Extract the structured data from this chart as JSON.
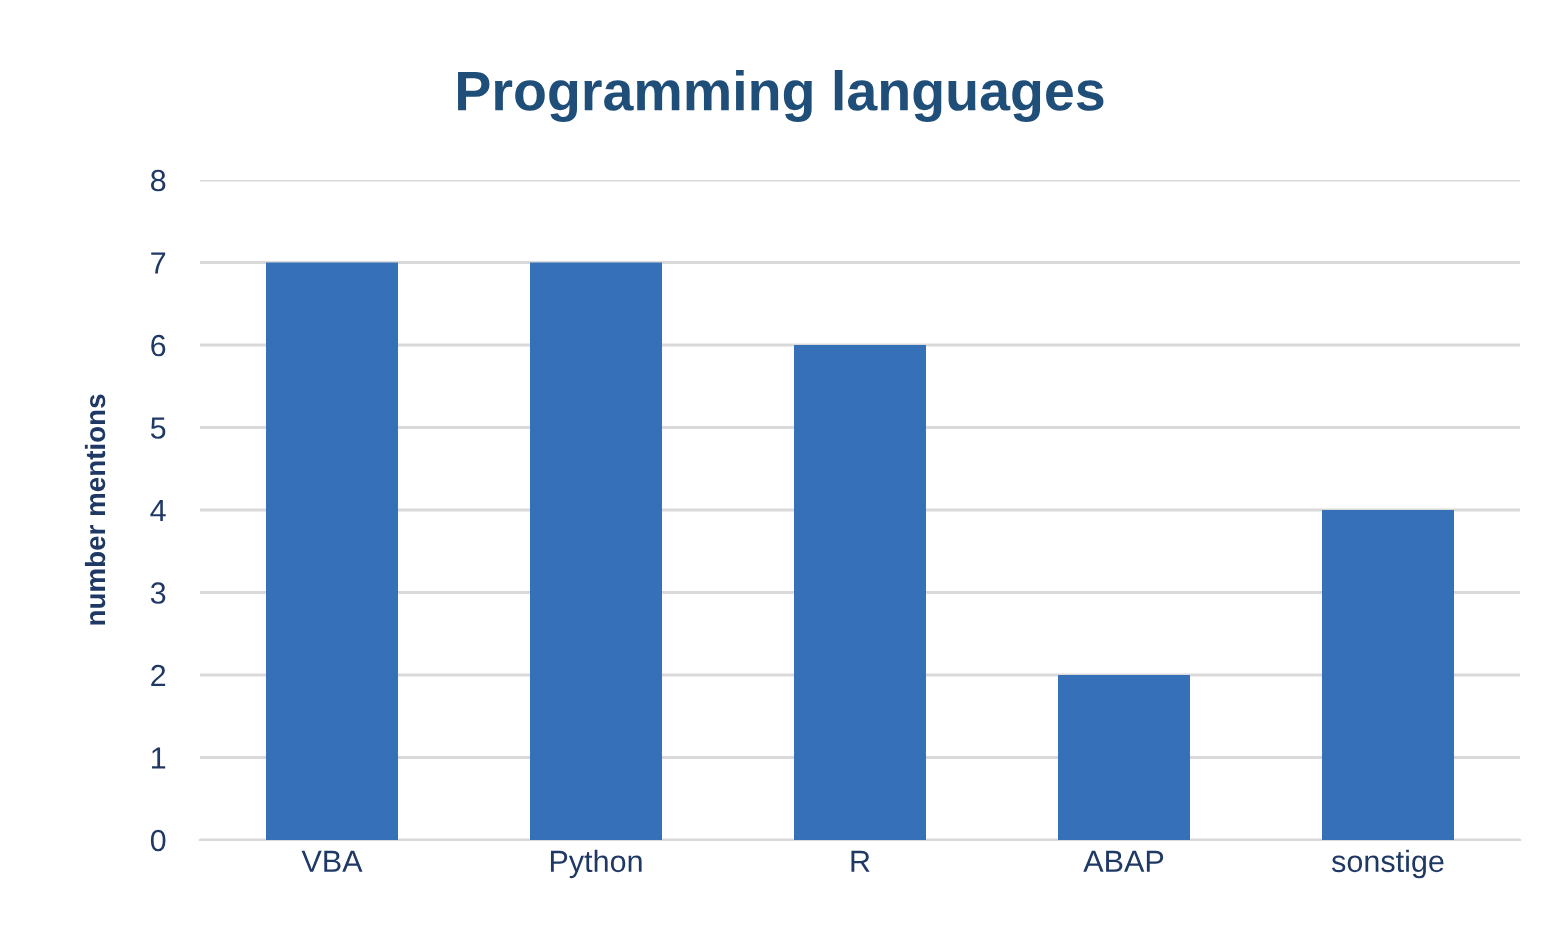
{
  "chart_data": {
    "type": "bar",
    "title": "Programming languages",
    "ylabel": "number mentions",
    "categories": [
      "VBA",
      "Python",
      "R",
      "ABAP",
      "sonstige"
    ],
    "values": [
      7,
      7,
      6,
      2,
      4
    ],
    "color": "#3670b8",
    "ylim": [
      0,
      8
    ],
    "yticks": [
      0,
      1,
      2,
      3,
      4,
      5,
      6,
      7,
      8
    ],
    "grid": "y"
  }
}
